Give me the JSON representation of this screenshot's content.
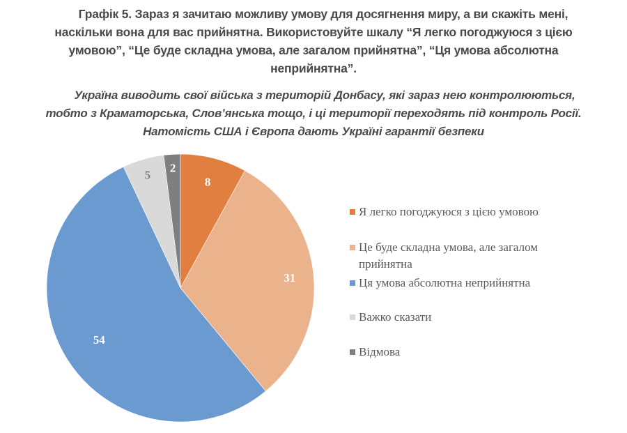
{
  "title": {
    "line1": "Графік 5. Зараз я зачитаю можливу умову для досягнення миру, а ви скажіть мені,",
    "line2": "наскільки вона для вас прийнятна. Використовуйте шкалу “Я легко погоджуюся з цією",
    "line3": "умовою”, “Це буде складна умова, але загалом прийнятна”, “Ця умова абсолютна",
    "line4": "неприйнятна”."
  },
  "subtitle": {
    "line1": "Україна виводить свої війська з територій Донбасу, які зараз нею контролюються,",
    "line2": "тобто з Краматорська, Слов’янська тощо, і ці території переходять під контроль Росії.",
    "line3": "Натомість США і Європа дають Україні гарантії безпеки"
  },
  "chart_data": {
    "type": "pie",
    "title": "Графік 5. Зараз я зачитаю можливу умову для досягнення миру, а ви скажіть мені, наскільки вона для вас прийнятна. Використовуйте шкалу “Я легко погоджуюся з цією умовою”, “Це буде складна умова, але загалом прийнятна”, “Ця умова абсолютна неприйнятна”.",
    "subtitle": "Україна виводить свої війська з територій Донбасу, які зараз нею контролюються, тобто з Краматорська, Слов’янська тощо, і ці території переходять під контроль Росії. Натомість США і Європа дають Україні гарантії безпеки",
    "categories": [
      "Я легко погоджуюся з цією умовою",
      "Це буде складна умова, але загалом прийнятна",
      "Ця умова абсолютна неприйнятна",
      "Важко сказати",
      "Відмова"
    ],
    "values": [
      8,
      31,
      54,
      5,
      2
    ],
    "colors": [
      "#E07F40",
      "#EAB38C",
      "#6A9AD0",
      "#D9D9D9",
      "#7F7F7F"
    ],
    "label_colors": [
      "#ffffff",
      "#ffffff",
      "#ffffff",
      "#7f7f7f",
      "#ffffff"
    ],
    "start_angle_deg": 0,
    "direction": "clockwise",
    "legend_position": "right"
  },
  "legend": {
    "items": [
      {
        "label_line1": "Я легко погоджуюся з цією умовою",
        "label_line2": ""
      },
      {
        "label_line1": "Це буде складна умова, але загалом",
        "label_line2": "прийнятна"
      },
      {
        "label_line1": "Ця умова абсолютна неприйнятна",
        "label_line2": ""
      },
      {
        "label_line1": "Важко сказати",
        "label_line2": ""
      },
      {
        "label_line1": "Відмова",
        "label_line2": ""
      }
    ]
  }
}
